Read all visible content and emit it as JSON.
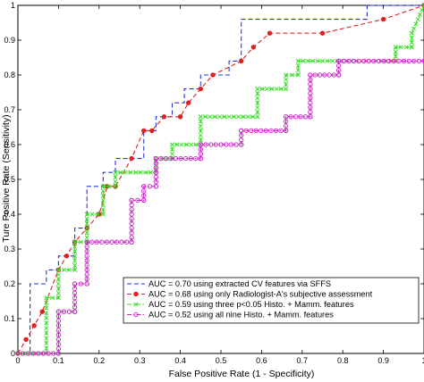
{
  "chart_data": {
    "type": "line",
    "title": "",
    "xlabel": "False Positive Rate (1 - Specificity)",
    "ylabel": "Ture Positive Rate (Sensitivity)",
    "xlim": [
      0,
      1
    ],
    "ylim": [
      0,
      1
    ],
    "x_ticks": [
      "0",
      "0.1",
      "0.2",
      "0.3",
      "0.4",
      "0.5",
      "0.6",
      "0.7",
      "0.8",
      "0.9",
      "1"
    ],
    "y_ticks": [
      "0",
      "0.1",
      "0.2",
      "0.3",
      "0.4",
      "0.5",
      "0.6",
      "0.7",
      "0.8",
      "0.9",
      "1"
    ],
    "grid": false,
    "legend_position": "bottom-right",
    "series": [
      {
        "name": "AUC = 0.70 using extracted CV features via SFFS",
        "color": "#2233dd",
        "dash": "dashed",
        "marker": "none",
        "x": [
          0,
          0.03,
          0.03,
          0.07,
          0.07,
          0.1,
          0.1,
          0.14,
          0.14,
          0.17,
          0.17,
          0.21,
          0.21,
          0.24,
          0.24,
          0.31,
          0.31,
          0.34,
          0.34,
          0.38,
          0.38,
          0.41,
          0.41,
          0.45,
          0.45,
          0.52,
          0.52,
          0.55,
          0.55,
          0.62,
          0.62,
          0.86,
          0.86,
          0.93,
          0.93,
          1.0
        ],
        "y": [
          0,
          0,
          0.2,
          0.2,
          0.24,
          0.24,
          0.28,
          0.28,
          0.36,
          0.36,
          0.48,
          0.48,
          0.52,
          0.52,
          0.56,
          0.56,
          0.64,
          0.64,
          0.68,
          0.68,
          0.72,
          0.72,
          0.76,
          0.76,
          0.8,
          0.8,
          0.84,
          0.84,
          0.96,
          0.96,
          0.96,
          0.96,
          1.0,
          1.0,
          1.0,
          1.0
        ]
      },
      {
        "name": "AUC = 0.68 using only Radiologist-A's subjective assessment",
        "color": "#dd2222",
        "dash": "dashed",
        "marker": "filled-circle",
        "x": [
          0,
          0.02,
          0.04,
          0.06,
          0.1,
          0.12,
          0.14,
          0.17,
          0.2,
          0.22,
          0.24,
          0.28,
          0.31,
          0.33,
          0.36,
          0.4,
          0.42,
          0.45,
          0.48,
          0.55,
          0.58,
          0.62,
          0.75,
          0.9,
          1.0
        ],
        "y": [
          0,
          0.04,
          0.08,
          0.12,
          0.24,
          0.28,
          0.32,
          0.36,
          0.4,
          0.48,
          0.48,
          0.56,
          0.64,
          0.64,
          0.68,
          0.68,
          0.72,
          0.76,
          0.8,
          0.84,
          0.88,
          0.92,
          0.92,
          0.96,
          1.0
        ]
      },
      {
        "name": "AUC = 0.59 using three p<0.05 Histo. + Mamm. features",
        "color": "#33dd22",
        "dash": "dashdot",
        "marker": "x",
        "x": [
          0,
          0.07,
          0.07,
          0.1,
          0.1,
          0.14,
          0.14,
          0.17,
          0.17,
          0.21,
          0.21,
          0.24,
          0.24,
          0.34,
          0.34,
          0.38,
          0.38,
          0.45,
          0.45,
          0.59,
          0.59,
          0.66,
          0.66,
          0.69,
          0.69,
          0.93,
          0.93,
          0.97,
          0.97,
          1.0
        ],
        "y": [
          0,
          0,
          0.16,
          0.16,
          0.24,
          0.24,
          0.32,
          0.32,
          0.4,
          0.4,
          0.48,
          0.48,
          0.52,
          0.52,
          0.56,
          0.56,
          0.6,
          0.6,
          0.68,
          0.68,
          0.76,
          0.76,
          0.8,
          0.8,
          0.84,
          0.84,
          0.88,
          0.88,
          0.92,
          1.0
        ]
      },
      {
        "name": "AUC = 0.52 using all nine Histo. + Mamm. features",
        "color": "#cc22cc",
        "dash": "dashdot",
        "marker": "open-circle",
        "x": [
          0,
          0.1,
          0.1,
          0.14,
          0.14,
          0.17,
          0.17,
          0.28,
          0.28,
          0.31,
          0.31,
          0.34,
          0.34,
          0.45,
          0.45,
          0.55,
          0.55,
          0.66,
          0.66,
          0.72,
          0.72,
          0.79,
          0.79,
          1.0
        ],
        "y": [
          0,
          0,
          0.12,
          0.12,
          0.2,
          0.2,
          0.32,
          0.32,
          0.44,
          0.44,
          0.48,
          0.48,
          0.56,
          0.56,
          0.6,
          0.6,
          0.64,
          0.64,
          0.68,
          0.68,
          0.8,
          0.8,
          0.84,
          0.84
        ]
      }
    ]
  }
}
